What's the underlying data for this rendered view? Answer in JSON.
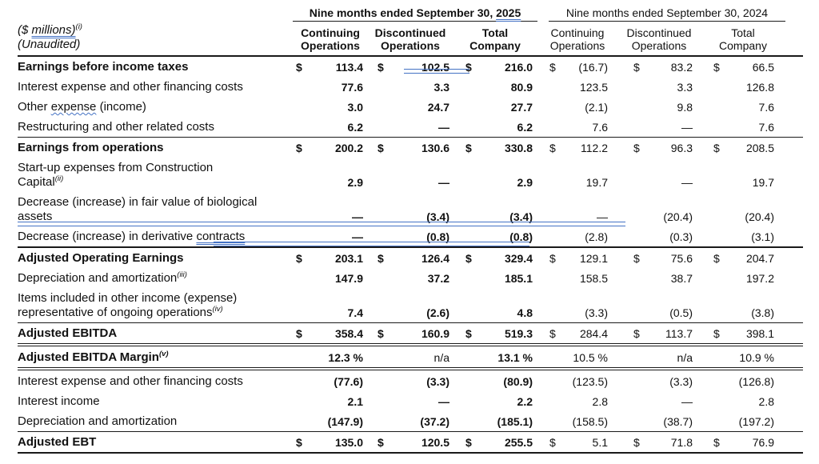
{
  "meta": {
    "accent_blue": "#4472C4",
    "text_color": "#111111"
  },
  "currency_symbol": "$",
  "header": {
    "caption_line1_pre": "($ ",
    "caption_line1_underlined": "millions)",
    "caption_line1_sup": "(i)",
    "caption_line2": "(Unaudited)",
    "group_2025": {
      "pre": "Nine months ended September 30, ",
      "year": "2025"
    },
    "group_2024": "Nine months ended September 30, 2024",
    "subcols": [
      {
        "line1": "Continuing",
        "line2": "Operations"
      },
      {
        "line1": "Discontinued",
        "line2": "Operations"
      },
      {
        "line1": "Total",
        "line2": "Company"
      }
    ]
  },
  "rows": [
    {
      "name": "earnings-before-income-taxes",
      "bold": true,
      "dollar": true,
      "rule_above": null,
      "rule_below": null,
      "artifact": "mark-r1",
      "label": [
        {
          "t": "Earnings before income taxes"
        }
      ],
      "cells": [
        "113.4",
        "102.5",
        "216.0",
        "(16.7)",
        "83.2",
        "66.5"
      ]
    },
    {
      "name": "interest-expense-financing-costs-add",
      "bold": false,
      "dollar": false,
      "rule_above": null,
      "rule_below": null,
      "artifact": null,
      "label": [
        {
          "t": "Interest expense and other financing costs"
        }
      ],
      "cells": [
        "77.6",
        "3.3",
        "80.9",
        "123.5",
        "3.3",
        "126.8"
      ]
    },
    {
      "name": "other-expense-income",
      "bold": false,
      "dollar": false,
      "rule_above": null,
      "rule_below": null,
      "artifact": null,
      "label": [
        {
          "t": "Other "
        },
        {
          "t": "expense",
          "s": "uwavy"
        },
        {
          "t": " (income)"
        }
      ],
      "cells": [
        "3.0",
        "24.7",
        "27.7",
        "(2.1)",
        "9.8",
        "7.6"
      ]
    },
    {
      "name": "restructuring-other-related-costs",
      "bold": false,
      "dollar": false,
      "rule_above": null,
      "rule_below": null,
      "artifact": null,
      "label": [
        {
          "t": "Restructuring and other related costs"
        }
      ],
      "cells": [
        "6.2",
        "—",
        "6.2",
        "7.6",
        "—",
        "7.6"
      ]
    },
    {
      "name": "earnings-from-operations",
      "bold": true,
      "dollar": true,
      "rule_above": "single",
      "rule_below": null,
      "artifact": null,
      "label": [
        {
          "t": "Earnings from operations"
        }
      ],
      "cells": [
        "200.2",
        "130.6",
        "330.8",
        "112.2",
        "96.3",
        "208.5"
      ]
    },
    {
      "name": "startup-expenses-construction-capital",
      "bold": false,
      "dollar": false,
      "rule_above": null,
      "rule_below": null,
      "artifact": null,
      "label": [
        {
          "t": "Start-up expenses from Construction",
          "br": true
        },
        {
          "t": "Capital"
        },
        {
          "t": "(ii)",
          "s": "sup"
        }
      ],
      "cells": [
        "2.9",
        "—",
        "2.9",
        "19.7",
        "—",
        "19.7"
      ]
    },
    {
      "name": "fair-value-biological-assets",
      "bold": false,
      "dollar": false,
      "rule_above": null,
      "rule_below": null,
      "artifact": "mark-bio",
      "label": [
        {
          "t": "Decrease (increase) in fair value of biological",
          "br": true
        },
        {
          "t": "assets"
        }
      ],
      "cells": [
        "—",
        "(3.4)",
        "(3.4)",
        "—",
        "(20.4)",
        "(20.4)"
      ]
    },
    {
      "name": "derivative-contracts",
      "bold": false,
      "dollar": false,
      "rule_above": null,
      "rule_below": null,
      "artifact": "mark-deriv",
      "label": [
        {
          "t": "Decrease (increase) in derivative "
        },
        {
          "t": "contracts",
          "s": "udbl"
        }
      ],
      "cells": [
        "—",
        "(0.8)",
        "(0.8)",
        "(2.8)",
        "(0.3)",
        "(3.1)"
      ]
    },
    {
      "name": "adjusted-operating-earnings",
      "bold": true,
      "dollar": true,
      "rule_above": "thick",
      "rule_below": null,
      "artifact": null,
      "label": [
        {
          "t": "Adjusted Operating Earnings"
        }
      ],
      "cells": [
        "203.1",
        "126.4",
        "329.4",
        "129.1",
        "75.6",
        "204.7"
      ]
    },
    {
      "name": "depreciation-amortization-add",
      "bold": false,
      "dollar": false,
      "rule_above": null,
      "rule_below": null,
      "artifact": null,
      "label": [
        {
          "t": "Depreciation and amortization"
        },
        {
          "t": "(iii)",
          "s": "sup"
        }
      ],
      "cells": [
        "147.9",
        "37.2",
        "185.1",
        "158.5",
        "38.7",
        "197.2"
      ]
    },
    {
      "name": "items-other-income-ongoing-operations",
      "bold": false,
      "dollar": false,
      "rule_above": null,
      "rule_below": null,
      "artifact": null,
      "label": [
        {
          "t": "Items included in other income (expense)",
          "br": true
        },
        {
          "t": "representative of ongoing operations"
        },
        {
          "t": "(iv)",
          "s": "sup"
        }
      ],
      "cells": [
        "7.4",
        "(2.6)",
        "4.8",
        "(3.3)",
        "(0.5)",
        "(3.8)"
      ]
    },
    {
      "name": "adjusted-ebitda",
      "bold": true,
      "dollar": true,
      "rule_above": "single",
      "rule_below": "double",
      "artifact": null,
      "label": [
        {
          "t": "Adjusted EBITDA"
        }
      ],
      "cells": [
        "358.4",
        "160.9",
        "519.3",
        "284.4",
        "113.7",
        "398.1"
      ]
    },
    {
      "name": "adjusted-ebitda-margin",
      "bold": true,
      "dollar": false,
      "rule_above": null,
      "rule_below": "double",
      "artifact": null,
      "label": [
        {
          "t": "Adjusted EBITDA Margin"
        },
        {
          "t": "(v)",
          "s": "sup"
        }
      ],
      "cells": [
        "12.3 %",
        "n/a",
        "13.1 %",
        "10.5 %",
        "n/a",
        "10.9 %"
      ]
    },
    {
      "name": "interest-expense-financing-costs-deduct",
      "bold": false,
      "dollar": false,
      "rule_above": null,
      "rule_below": null,
      "artifact": null,
      "label": [
        {
          "t": "Interest expense and other financing costs"
        }
      ],
      "cells": [
        "(77.6)",
        "(3.3)",
        "(80.9)",
        "(123.5)",
        "(3.3)",
        "(126.8)"
      ]
    },
    {
      "name": "interest-income",
      "bold": false,
      "dollar": false,
      "rule_above": null,
      "rule_below": null,
      "artifact": null,
      "label": [
        {
          "t": "Interest income"
        }
      ],
      "cells": [
        "2.1",
        "—",
        "2.2",
        "2.8",
        "—",
        "2.8"
      ]
    },
    {
      "name": "depreciation-amortization-deduct",
      "bold": false,
      "dollar": false,
      "rule_above": null,
      "rule_below": null,
      "artifact": null,
      "label": [
        {
          "t": "Depreciation and amortization"
        }
      ],
      "cells": [
        "(147.9)",
        "(37.2)",
        "(185.1)",
        "(158.5)",
        "(38.7)",
        "(197.2)"
      ]
    },
    {
      "name": "adjusted-ebt",
      "bold": true,
      "dollar": true,
      "rule_above": "single",
      "rule_below": "final",
      "artifact": null,
      "label": [
        {
          "t": "Adjusted EBT"
        }
      ],
      "cells": [
        "135.0",
        "120.5",
        "255.5",
        "5.1",
        "71.8",
        "76.9"
      ]
    }
  ]
}
